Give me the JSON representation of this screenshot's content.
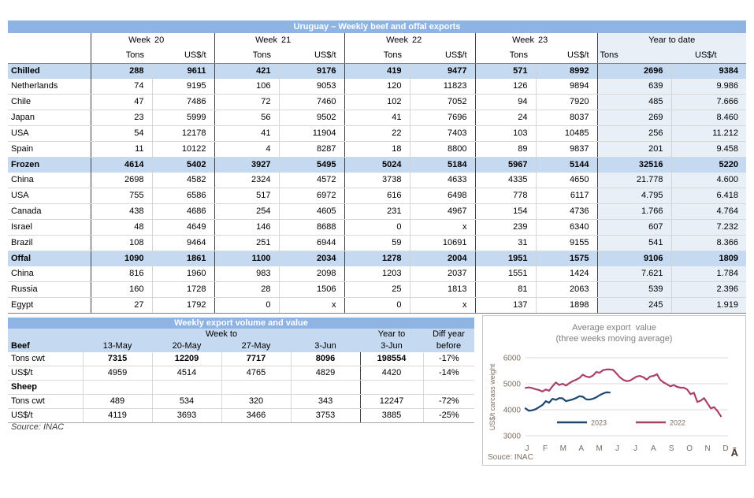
{
  "table1": {
    "title": "Uruguay – Weekly beef and offal exports",
    "week_groups": [
      {
        "label": "Week",
        "num": "20"
      },
      {
        "label": "Week",
        "num": "21"
      },
      {
        "label": "Week",
        "num": "22"
      },
      {
        "label": "Week",
        "num": "23"
      }
    ],
    "ytd_label": "Year to date",
    "subheaders": {
      "tons": "Tons",
      "usd": "US$/t"
    },
    "rows": [
      {
        "label": "Chilled",
        "type": "section",
        "values": [
          "288",
          "9611",
          "421",
          "9176",
          "419",
          "9477",
          "571",
          "8992",
          "2696",
          "9384"
        ]
      },
      {
        "label": "Netherlands",
        "type": "data",
        "values": [
          "74",
          "9195",
          "106",
          "9053",
          "120",
          "11823",
          "126",
          "9894",
          "639",
          "9.986"
        ]
      },
      {
        "label": "Chile",
        "type": "data",
        "values": [
          "47",
          "7486",
          "72",
          "7460",
          "102",
          "7052",
          "94",
          "7920",
          "485",
          "7.666"
        ]
      },
      {
        "label": "Japan",
        "type": "data",
        "values": [
          "23",
          "5999",
          "56",
          "9502",
          "41",
          "7696",
          "24",
          "8037",
          "269",
          "8.460"
        ]
      },
      {
        "label": "USA",
        "type": "data",
        "values": [
          "54",
          "12178",
          "41",
          "11904",
          "22",
          "7403",
          "103",
          "10485",
          "256",
          "11.212"
        ]
      },
      {
        "label": "Spain",
        "type": "data",
        "values": [
          "11",
          "10122",
          "4",
          "8287",
          "18",
          "8800",
          "89",
          "9837",
          "201",
          "9.458"
        ]
      },
      {
        "label": "Frozen",
        "type": "section",
        "values": [
          "4614",
          "5402",
          "3927",
          "5495",
          "5024",
          "5184",
          "5967",
          "5144",
          "32516",
          "5220"
        ]
      },
      {
        "label": "China",
        "type": "data",
        "values": [
          "2698",
          "4582",
          "2324",
          "4572",
          "3738",
          "4633",
          "4335",
          "4650",
          "21.778",
          "4.600"
        ]
      },
      {
        "label": "USA",
        "type": "data",
        "values": [
          "755",
          "6586",
          "517",
          "6972",
          "616",
          "6498",
          "778",
          "6117",
          "4.795",
          "6.418"
        ]
      },
      {
        "label": "Canada",
        "type": "data",
        "values": [
          "438",
          "4686",
          "254",
          "4605",
          "231",
          "4967",
          "154",
          "4736",
          "1.766",
          "4.764"
        ]
      },
      {
        "label": "Israel",
        "type": "data",
        "values": [
          "48",
          "4649",
          "146",
          "8688",
          "0",
          "x",
          "239",
          "6340",
          "607",
          "7.232"
        ]
      },
      {
        "label": "Brazil",
        "type": "data",
        "values": [
          "108",
          "9464",
          "251",
          "6944",
          "59",
          "10691",
          "31",
          "9155",
          "541",
          "8.366"
        ]
      },
      {
        "label": "Offal",
        "type": "section",
        "values": [
          "1090",
          "1861",
          "1100",
          "2034",
          "1278",
          "2004",
          "1951",
          "1575",
          "9106",
          "1809"
        ]
      },
      {
        "label": "China",
        "type": "data",
        "values": [
          "816",
          "1960",
          "983",
          "2098",
          "1203",
          "2037",
          "1551",
          "1424",
          "7.621",
          "1.784"
        ]
      },
      {
        "label": "Russia",
        "type": "data",
        "values": [
          "160",
          "1728",
          "28",
          "1506",
          "25",
          "1813",
          "81",
          "2063",
          "539",
          "2.396"
        ]
      },
      {
        "label": "Egypt",
        "type": "data",
        "values": [
          "27",
          "1792",
          "0",
          "x",
          "0",
          "x",
          "137",
          "1898",
          "245",
          "1.919"
        ]
      }
    ]
  },
  "table2": {
    "title": "Weekly export volume and value",
    "week_to_label": "Week to",
    "year_to_label": "Year to",
    "diff_label_line1": "Diff year",
    "diff_label_line2": "before",
    "group1_label": "Beef",
    "dates": [
      "13-May",
      "20-May",
      "27-May",
      "3-Jun"
    ],
    "year_date": "3-Jun",
    "rows": [
      {
        "label": "Tons cwt",
        "bold_values": true,
        "values": [
          "7315",
          "12209",
          "7717",
          "8096",
          "198554",
          "-17%"
        ]
      },
      {
        "label": "US$/t",
        "bold_values": false,
        "values": [
          "4959",
          "4514",
          "4765",
          "4829",
          "4420",
          "-14%"
        ]
      },
      {
        "label": "Sheep",
        "section": true,
        "bold_values": false,
        "values": [
          "",
          "",
          "",
          "",
          "",
          ""
        ]
      },
      {
        "label": "Tons cwt",
        "bold_values": false,
        "values": [
          "489",
          "534",
          "320",
          "343",
          "12247",
          "-72%"
        ]
      },
      {
        "label": "US$/t",
        "bold_values": false,
        "values": [
          "4119",
          "3693",
          "3466",
          "3753",
          "3885",
          "-25%"
        ]
      }
    ],
    "source": "Source: INAC"
  },
  "chart_data": {
    "type": "line",
    "title_line1": "Average export  value",
    "title_line2": "(three weeks moving average)",
    "ylabel": "US$/t carcass weight",
    "ylim": [
      3000,
      6000
    ],
    "yticks": [
      6000,
      5000,
      4000,
      3000
    ],
    "months": [
      "J",
      "F",
      "M",
      "A",
      "M",
      "J",
      "J",
      "A",
      "S",
      "O",
      "N",
      "D"
    ],
    "grid": true,
    "legend_position": "inside-bottom",
    "source": "Souce: INAC",
    "corner_glyph": "Ā",
    "series": [
      {
        "name": "2023",
        "color": "#1C4770",
        "values": [
          4050,
          3960,
          3980,
          4020,
          4100,
          4180,
          4330,
          4270,
          4420,
          4380,
          4450,
          4440,
          4330,
          4360,
          4400,
          4450,
          4520,
          4500,
          4400,
          4390,
          4420,
          4480,
          4560,
          4620,
          4670,
          4660
        ]
      },
      {
        "name": "2022",
        "color": "#A94069",
        "values": [
          4840,
          4860,
          4830,
          4790,
          4760,
          4700,
          4780,
          4730,
          4900,
          5050,
          4950,
          5000,
          4930,
          5020,
          5100,
          5150,
          5220,
          5350,
          5280,
          5250,
          5310,
          5450,
          5420,
          5520,
          5550,
          5550,
          5530,
          5400,
          5250,
          5150,
          5100,
          5120,
          5200,
          5280,
          5300,
          5250,
          5160,
          5280,
          5300,
          5370,
          5150,
          5050,
          4980,
          4900,
          4950,
          4880,
          4850,
          4850,
          4780,
          4600,
          4650,
          4300,
          4350,
          4450,
          4250,
          4050,
          4100,
          3950,
          3750
        ]
      }
    ]
  }
}
